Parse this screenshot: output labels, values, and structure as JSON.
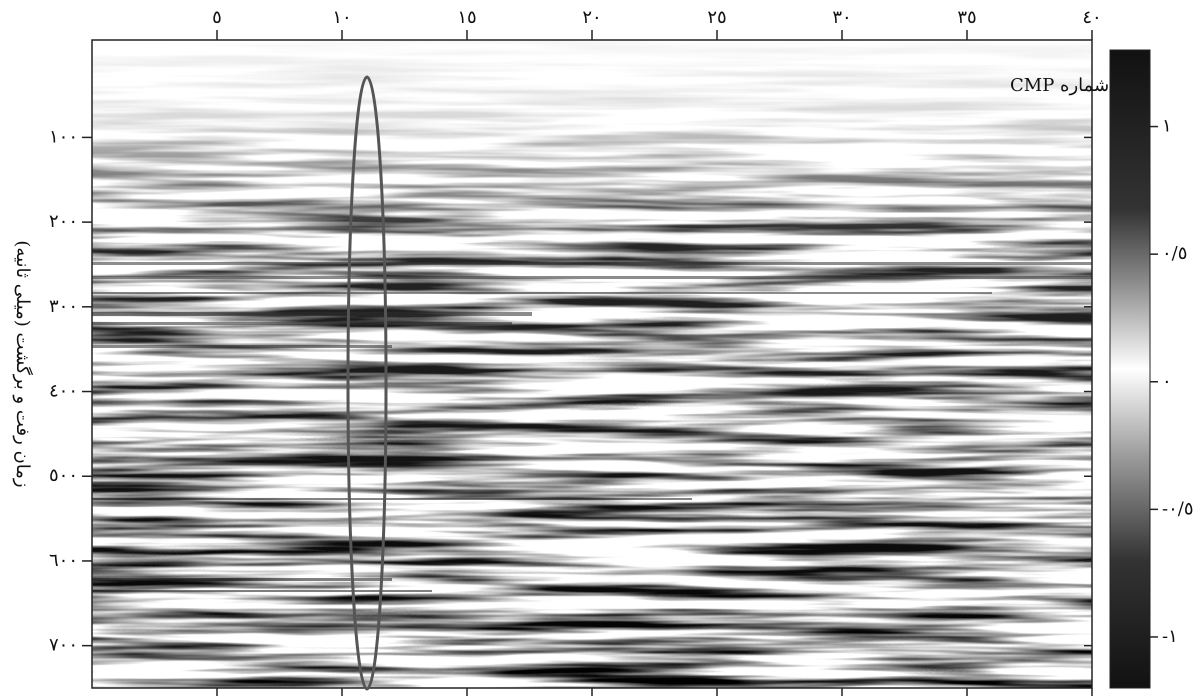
{
  "chart_data": {
    "type": "seismic",
    "x_label": "شماره CMP",
    "y_label": "زمان رفت و برگشت (میلی ثانیه)",
    "xlim": [
      0,
      40
    ],
    "xticks": [
      {
        "value": 5,
        "label": "٥"
      },
      {
        "value": 10,
        "label": "١٠"
      },
      {
        "value": 15,
        "label": "١٥"
      },
      {
        "value": 20,
        "label": "٢٠"
      },
      {
        "value": 25,
        "label": "٢٥"
      },
      {
        "value": 30,
        "label": "٣٠"
      },
      {
        "value": 35,
        "label": "٣٥"
      },
      {
        "value": 40,
        "label": "٤٠"
      }
    ],
    "ylim": [
      -15,
      750
    ],
    "yticks": [
      {
        "value": 100,
        "label": "١٠٠"
      },
      {
        "value": 200,
        "label": "٢٠٠"
      },
      {
        "value": 300,
        "label": "٣٠٠"
      },
      {
        "value": 400,
        "label": "٤٠٠"
      },
      {
        "value": 500,
        "label": "٥٠٠"
      },
      {
        "value": 600,
        "label": "٦٠٠"
      },
      {
        "value": 700,
        "label": "٧٠٠"
      }
    ],
    "clim": [
      -1.2,
      1.3
    ],
    "cticks": [
      {
        "value": 1,
        "label": "١"
      },
      {
        "value": 0.5,
        "label": "٠/٥"
      },
      {
        "value": 0,
        "label": "٠"
      },
      {
        "value": -0.5,
        "label": "-٠/٥"
      },
      {
        "value": -1,
        "label": "-١"
      }
    ]
  }
}
